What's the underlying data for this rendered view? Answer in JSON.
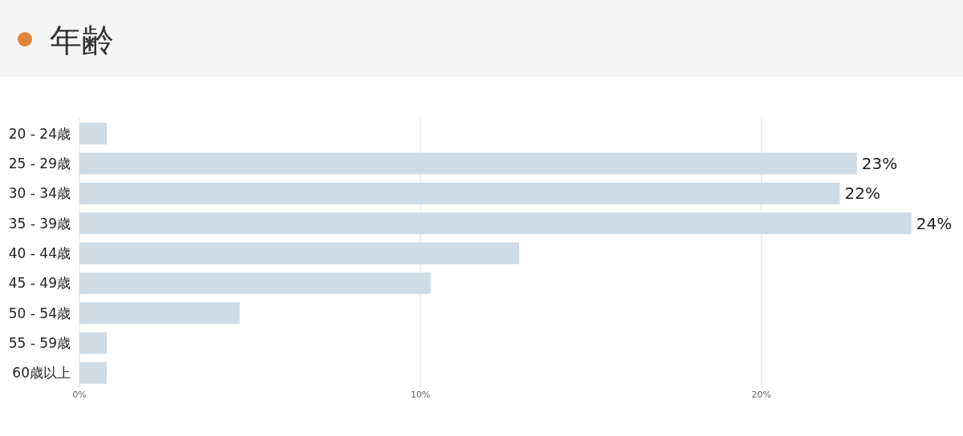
{
  "chart_data": {
    "type": "bar",
    "orientation": "horizontal",
    "title": "年齢",
    "categories": [
      "20 - 24歳",
      "25 - 29歳",
      "30 - 34歳",
      "35 - 39歳",
      "40 - 44歳",
      "45 - 49歳",
      "50 - 54歳",
      "55 - 59歳",
      "60歳以上"
    ],
    "values": [
      0.8,
      22.8,
      22.3,
      24.4,
      12.9,
      10.3,
      4.7,
      0.8,
      0.8
    ],
    "value_labels": [
      null,
      "23%",
      "22%",
      "24%",
      null,
      null,
      null,
      null,
      null
    ],
    "color": "#cfdbe5",
    "xlim": [
      0,
      24.5
    ],
    "xticks": [
      {
        "value": 0,
        "label": "0%"
      },
      {
        "value": 10,
        "label": "10%"
      },
      {
        "value": 20,
        "label": "20%"
      }
    ],
    "grid": "x"
  }
}
